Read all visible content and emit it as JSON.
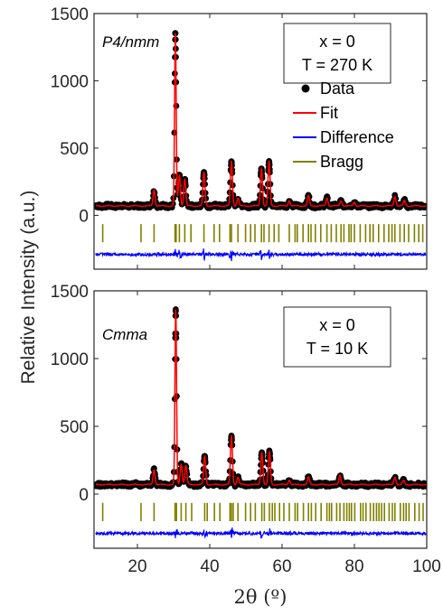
{
  "colors": {
    "data": "#000000",
    "fit": "#ff0000",
    "difference": "#0000ff",
    "bragg": "#808000",
    "axis": "#262626"
  },
  "chart_data": [
    {
      "type": "scatter",
      "panel": "top",
      "phase_label": "P4/nmm",
      "box_lines": [
        "x = 0",
        "T = 270 K"
      ],
      "xlim": [
        8,
        100
      ],
      "ylim": [
        -400,
        1500
      ],
      "yticks": [
        0,
        500,
        1000,
        1500
      ],
      "xticks": [
        20,
        40,
        60,
        80,
        100
      ],
      "background": 70,
      "difference_offset": -290,
      "bragg_band": [
        -200,
        -65
      ],
      "legend": {
        "placement": "right",
        "entries": [
          {
            "label": "Data",
            "marker": "dot"
          },
          {
            "label": "Fit",
            "marker": "line",
            "color": "#ff0000"
          },
          {
            "label": "Difference",
            "marker": "line",
            "color": "#0000ff"
          },
          {
            "label": "Bragg",
            "marker": "line",
            "color": "#808000"
          }
        ]
      },
      "peaks": [
        {
          "x": 24.6,
          "height": 120
        },
        {
          "x": 30.5,
          "height": 1280
        },
        {
          "x": 31.6,
          "height": 230
        },
        {
          "x": 33.1,
          "height": 200
        },
        {
          "x": 38.4,
          "height": 250
        },
        {
          "x": 46.0,
          "height": 330
        },
        {
          "x": 47.8,
          "height": 60
        },
        {
          "x": 54.3,
          "height": 280
        },
        {
          "x": 56.4,
          "height": 330
        },
        {
          "x": 62.0,
          "height": 40
        },
        {
          "x": 67.3,
          "height": 75
        },
        {
          "x": 72.4,
          "height": 60
        },
        {
          "x": 76.3,
          "height": 40
        },
        {
          "x": 80.0,
          "height": 30
        },
        {
          "x": 91.2,
          "height": 70
        },
        {
          "x": 93.8,
          "height": 40
        }
      ],
      "bragg_positions": [
        10.4,
        21.0,
        24.6,
        30.4,
        30.7,
        31.6,
        33.1,
        34.8,
        38.4,
        41.2,
        42.7,
        45.6,
        46.0,
        47.8,
        49.9,
        51.3,
        52.5,
        54.3,
        55.0,
        56.4,
        57.8,
        59.1,
        62.0,
        63.6,
        64.2,
        65.8,
        67.3,
        68.0,
        69.2,
        70.7,
        72.4,
        73.6,
        75.0,
        76.3,
        77.1,
        78.5,
        79.1,
        80.0,
        81.6,
        83.1,
        84.3,
        85.2,
        86.7,
        88.2,
        89.5,
        90.4,
        91.2,
        92.6,
        93.8,
        95.0,
        96.6,
        97.8,
        98.9
      ]
    },
    {
      "type": "scatter",
      "panel": "bottom",
      "phase_label": "Cmma",
      "box_lines": [
        "x = 0",
        "T = 10 K"
      ],
      "xlim": [
        8,
        100
      ],
      "ylim": [
        -400,
        1500
      ],
      "yticks": [
        0,
        500,
        1000,
        1500
      ],
      "xticks": [
        20,
        40,
        60,
        80,
        100
      ],
      "xlabel": "2θ (º)",
      "background": 70,
      "difference_offset": -290,
      "bragg_band": [
        -200,
        -65
      ],
      "peaks": [
        {
          "x": 24.6,
          "height": 110
        },
        {
          "x": 30.6,
          "height": 1290
        },
        {
          "x": 32.1,
          "height": 150
        },
        {
          "x": 33.4,
          "height": 140
        },
        {
          "x": 38.6,
          "height": 210
        },
        {
          "x": 46.0,
          "height": 360
        },
        {
          "x": 47.8,
          "height": 55
        },
        {
          "x": 54.4,
          "height": 240
        },
        {
          "x": 56.5,
          "height": 240
        },
        {
          "x": 62.0,
          "height": 35
        },
        {
          "x": 67.3,
          "height": 55
        },
        {
          "x": 76.0,
          "height": 70
        },
        {
          "x": 91.2,
          "height": 55
        },
        {
          "x": 93.6,
          "height": 30
        }
      ],
      "bragg_positions": [
        10.4,
        21.0,
        24.6,
        30.4,
        30.8,
        32.1,
        33.4,
        35.0,
        38.6,
        39.3,
        41.3,
        42.8,
        45.6,
        46.0,
        46.5,
        47.8,
        49.9,
        51.3,
        52.6,
        54.4,
        55.1,
        56.5,
        57.3,
        58.0,
        59.3,
        60.5,
        62.0,
        63.6,
        64.3,
        65.9,
        67.3,
        68.1,
        69.3,
        70.8,
        72.4,
        73.1,
        73.7,
        75.1,
        76.0,
        77.1,
        77.9,
        78.6,
        79.2,
        80.1,
        81.7,
        82.4,
        83.2,
        84.4,
        85.3,
        86.1,
        86.8,
        87.5,
        88.3,
        89.6,
        90.5,
        91.2,
        92.7,
        93.6,
        94.3,
        95.1,
        96.7,
        97.9,
        99.0
      ]
    }
  ],
  "figure": {
    "ylabel": "Relative Intensity (a.u.)"
  }
}
